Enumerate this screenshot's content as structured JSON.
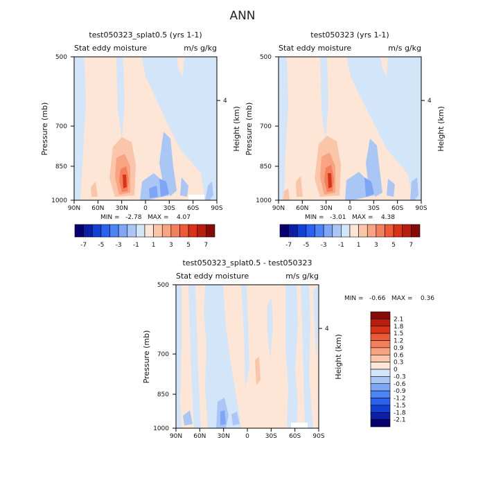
{
  "title": "ANN",
  "chart_data": [
    {
      "type": "heatmap",
      "title": "test050323_splat0.5 (yrs 1-1)",
      "subtitle_left": "Stat eddy moisture",
      "subtitle_right": "m/s g/kg",
      "ylabel": "Pressure (mb)",
      "y2label": "Height (km)",
      "y_ticks": [
        "500",
        "700",
        "850",
        "1000"
      ],
      "y2_ticks": [
        "4"
      ],
      "x_ticks": [
        "90N",
        "60N",
        "30N",
        "0",
        "30S",
        "60S",
        "90S"
      ],
      "stats": "MIN =   -2.78   MAX =    4.07",
      "colorbar_ticks": [
        "-7",
        "-5",
        "-3",
        "-1",
        "1",
        "3",
        "5",
        "7"
      ]
    },
    {
      "type": "heatmap",
      "title": "test050323 (yrs 1-1)",
      "subtitle_left": "Stat eddy moisture",
      "subtitle_right": "m/s g/kg",
      "ylabel": "Pressure (mb)",
      "y2label": "Height (km)",
      "y_ticks": [
        "500",
        "700",
        "850",
        "1000"
      ],
      "y2_ticks": [
        "4"
      ],
      "x_ticks": [
        "90N",
        "60N",
        "30N",
        "0",
        "30S",
        "60S",
        "90S"
      ],
      "stats": "MIN =   -3.01   MAX =    4.38",
      "colorbar_ticks": [
        "-7",
        "-5",
        "-3",
        "-1",
        "1",
        "3",
        "5",
        "7"
      ]
    },
    {
      "type": "heatmap",
      "title": "test050323_splat0.5 - test050323",
      "subtitle_left": "Stat eddy moisture",
      "subtitle_right": "m/s g/kg",
      "ylabel": "Pressure (mb)",
      "y2label": "Height (km)",
      "y_ticks": [
        "500",
        "700",
        "850",
        "1000"
      ],
      "y2_ticks": [
        "4"
      ],
      "x_ticks": [
        "90N",
        "60N",
        "30N",
        "0",
        "30S",
        "60S",
        "90S"
      ],
      "stats": "MIN =   -0.66   MAX =    0.36",
      "colorbar_ticks": [
        "2.1",
        "1.8",
        "1.5",
        "1.2",
        "0.9",
        "0.6",
        "0.3",
        "0",
        "-0.3",
        "-0.6",
        "-0.9",
        "-1.2",
        "-1.5",
        "-1.8",
        "-2.1"
      ]
    }
  ],
  "palette": [
    "#08006e",
    "#0a1fa5",
    "#123fd6",
    "#2a62ee",
    "#4d84f5",
    "#7ea6f5",
    "#a9c6f5",
    "#d3e5f8",
    "#fde6d6",
    "#fac5a8",
    "#f8a482",
    "#f47f5c",
    "#ec5a36",
    "#d93317",
    "#b71e0e",
    "#850a08"
  ]
}
